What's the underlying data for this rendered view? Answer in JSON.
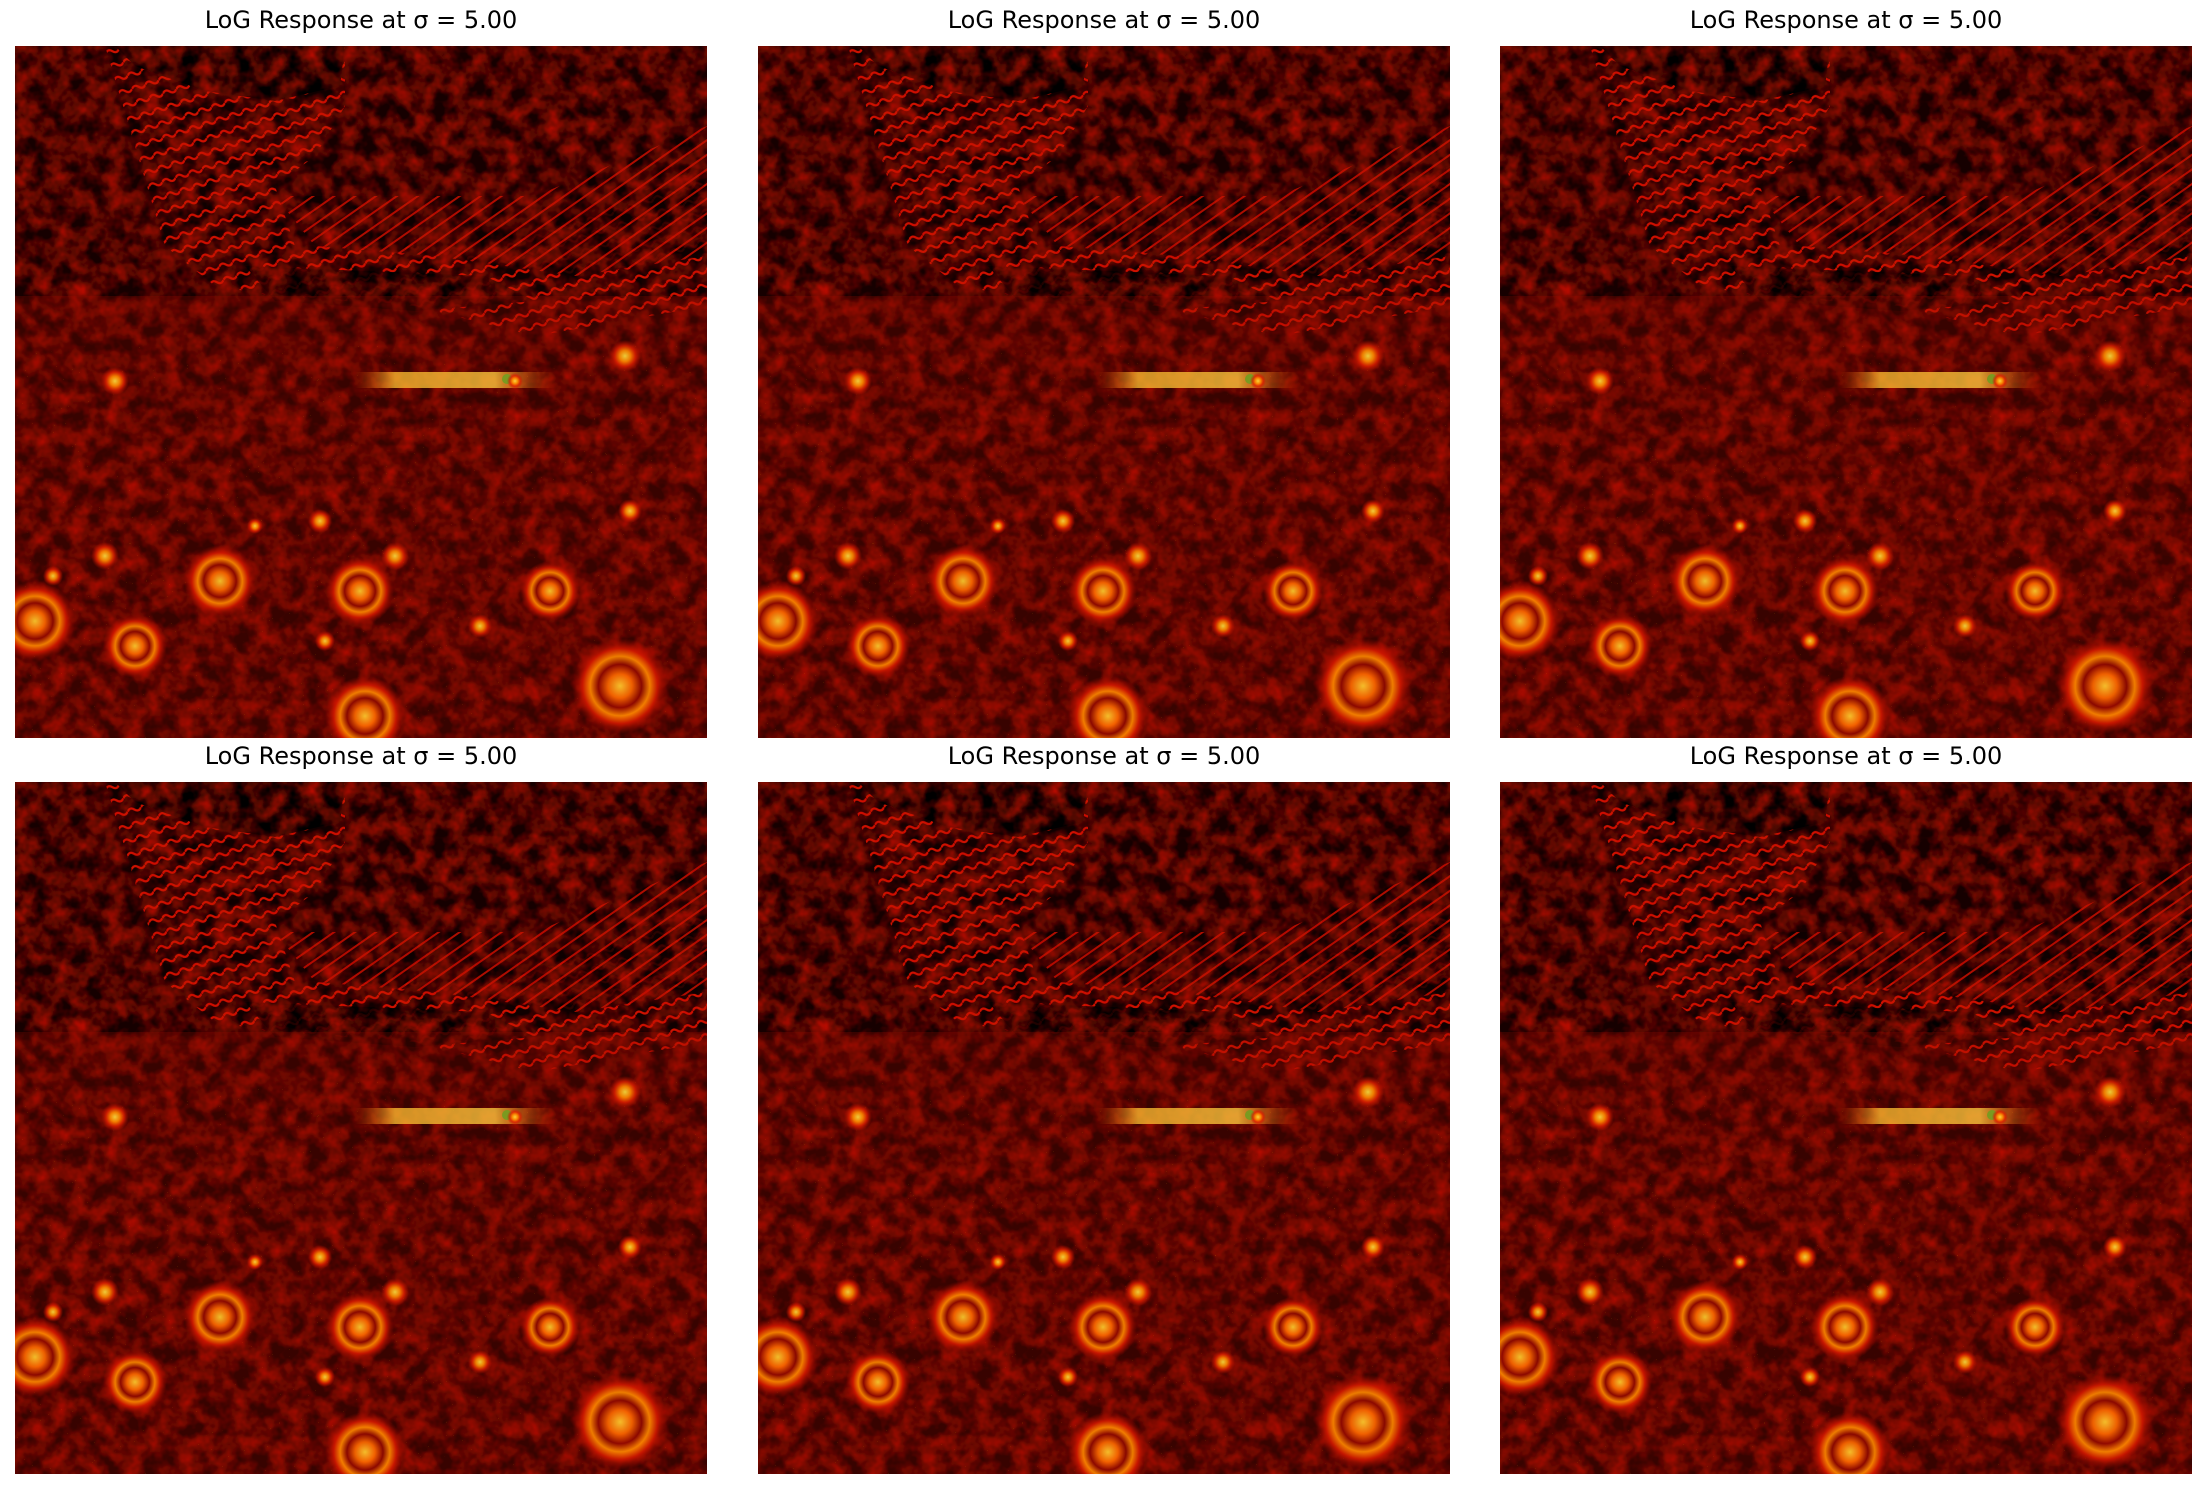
{
  "figure": {
    "panels": [
      {
        "title": "LoG Response at σ = 5.00",
        "colormap": "hot"
      },
      {
        "title": "LoG Response at σ = 5.00",
        "colormap": "hot"
      },
      {
        "title": "LoG Response at σ = 5.00",
        "colormap": "hot"
      },
      {
        "title": "LoG Response at σ = 5.00",
        "colormap": "hot"
      },
      {
        "title": "LoG Response at σ = 5.00",
        "colormap": "hot"
      },
      {
        "title": "LoG Response at σ = 5.00",
        "colormap": "hot"
      }
    ]
  },
  "colors": {
    "background": "#ffffff",
    "hot_black": "#000000",
    "hot_dark_red": "#5a0000",
    "hot_red": "#d41000",
    "hot_orange": "#ff7a00",
    "hot_yellow": "#ffe040",
    "accent_green": "#7a9a20"
  }
}
